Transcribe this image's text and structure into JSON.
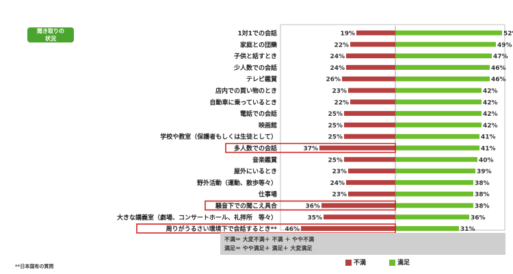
{
  "badge": {
    "line1": "聞き取りの",
    "line2": "状況"
  },
  "chart_data": {
    "type": "bar",
    "orientation": "horizontal-diverging",
    "categories": [
      "1対1での会話",
      "家庭との団欒",
      "子供と話すとき",
      "少人数での会話",
      "テレビ鑑賞",
      "店内での買い物のとき",
      "自動車に乗っているとき",
      "電話での会話",
      "映画館",
      "学校や教室（保護者もしくは生徒として）",
      "多人数での会話",
      "音楽鑑賞",
      "屋外にいるとき",
      "野外活動（運動、散歩等々）",
      "仕事場",
      "騒音下での聞こえ具合",
      "大きな講義室（劇場、コンサートホール、礼拝所　等々）",
      "周りがうるさい環境下で会話するとき**"
    ],
    "series": [
      {
        "name": "不満",
        "color": "#b5403f",
        "values": [
          19,
          22,
          24,
          24,
          26,
          23,
          22,
          25,
          25,
          25,
          37,
          25,
          23,
          24,
          23,
          36,
          35,
          46
        ]
      },
      {
        "name": "満足",
        "color": "#6cbf2a",
        "values": [
          52,
          49,
          47,
          46,
          46,
          42,
          42,
          42,
          42,
          41,
          41,
          40,
          39,
          38,
          38,
          38,
          36,
          31
        ]
      }
    ],
    "highlighted": [
      "多人数での会話",
      "騒音下での聞こえ具合",
      "周りがうるさい環境下で会話するとき**"
    ],
    "legend": "bottom"
  },
  "footnote": {
    "line1": "不満＝ 大変不満＋ 不満 ＋ やや不満",
    "line2": "満足＝ やや満足＋ 満足＋ 大変満足"
  },
  "legend": {
    "dissatisfied": "不満",
    "satisfied": "満足"
  },
  "corner_note": "**日本国有の質問"
}
